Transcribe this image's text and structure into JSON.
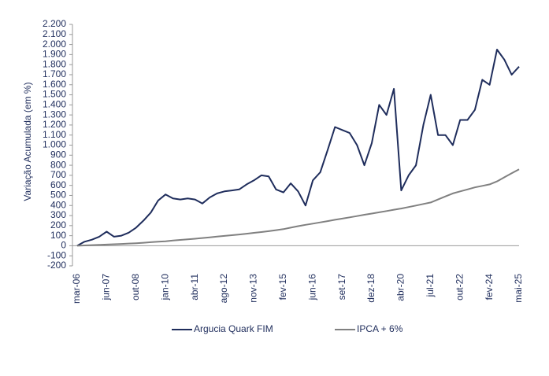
{
  "chart_data": {
    "type": "line",
    "y_label": "Variação Acumulada (em %)",
    "categories": [
      "mar-06",
      null,
      null,
      null,
      "jun-07",
      null,
      null,
      null,
      "out-08",
      null,
      null,
      null,
      "jan-10",
      null,
      null,
      null,
      "abr-11",
      null,
      null,
      null,
      "ago-12",
      null,
      null,
      null,
      "nov-13",
      null,
      null,
      null,
      "fev-15",
      null,
      null,
      null,
      "jun-16",
      null,
      null,
      null,
      "set-17",
      null,
      null,
      null,
      "dez-18",
      null,
      null,
      null,
      "abr-20",
      null,
      null,
      null,
      "jul-21",
      null,
      null,
      null,
      "out-22",
      null,
      null,
      null,
      "fev-24",
      null,
      null,
      null,
      "mai-25"
    ],
    "series": [
      {
        "name": "Argucia Quark FIM",
        "color": "#1f2d5c",
        "values": [
          0,
          40,
          60,
          90,
          140,
          90,
          100,
          130,
          180,
          250,
          330,
          450,
          510,
          470,
          460,
          470,
          460,
          420,
          480,
          520,
          540,
          550,
          560,
          610,
          650,
          700,
          690,
          560,
          530,
          620,
          540,
          400,
          650,
          730,
          950,
          1180,
          1150,
          1120,
          1000,
          800,
          1020,
          1400,
          1300,
          1560,
          550,
          700,
          800,
          1200,
          1500,
          1100,
          1100,
          1000,
          1250,
          1250,
          1350,
          1650,
          1600,
          1950,
          1850,
          1700,
          1780
        ]
      },
      {
        "name": "IPCA + 6%",
        "color": "#808080",
        "values": [
          0,
          3,
          6,
          9,
          12,
          15,
          18,
          22,
          25,
          30,
          35,
          40,
          45,
          52,
          58,
          64,
          70,
          77,
          84,
          91,
          98,
          105,
          112,
          120,
          128,
          136,
          145,
          155,
          165,
          180,
          195,
          208,
          220,
          232,
          245,
          258,
          270,
          282,
          295,
          308,
          320,
          332,
          345,
          358,
          370,
          385,
          400,
          415,
          430,
          460,
          490,
          520,
          540,
          560,
          580,
          595,
          610,
          640,
          680,
          720,
          760
        ]
      }
    ],
    "ylim": [
      -200,
      2200
    ],
    "yticks": [
      -200,
      -100,
      0,
      100,
      200,
      300,
      400,
      500,
      600,
      700,
      800,
      900,
      {
        "value": 1000,
        "label": "1.000"
      },
      {
        "value": 1100,
        "label": "1.100"
      },
      {
        "value": 1200,
        "label": "1.200"
      },
      {
        "value": 1300,
        "label": "1.300"
      },
      {
        "value": 1400,
        "label": "1.400"
      },
      {
        "value": 1500,
        "label": "1.500"
      },
      {
        "value": 1600,
        "label": "1.600"
      },
      {
        "value": 1700,
        "label": "1.700"
      },
      {
        "value": 1800,
        "label": "1.800"
      },
      {
        "value": 1900,
        "label": "1.900"
      },
      {
        "value": 2000,
        "label": "2.000"
      },
      {
        "value": 2100,
        "label": "2.100"
      },
      {
        "value": 2200,
        "label": "2.200"
      }
    ],
    "grid": false,
    "legend": "bottom"
  }
}
